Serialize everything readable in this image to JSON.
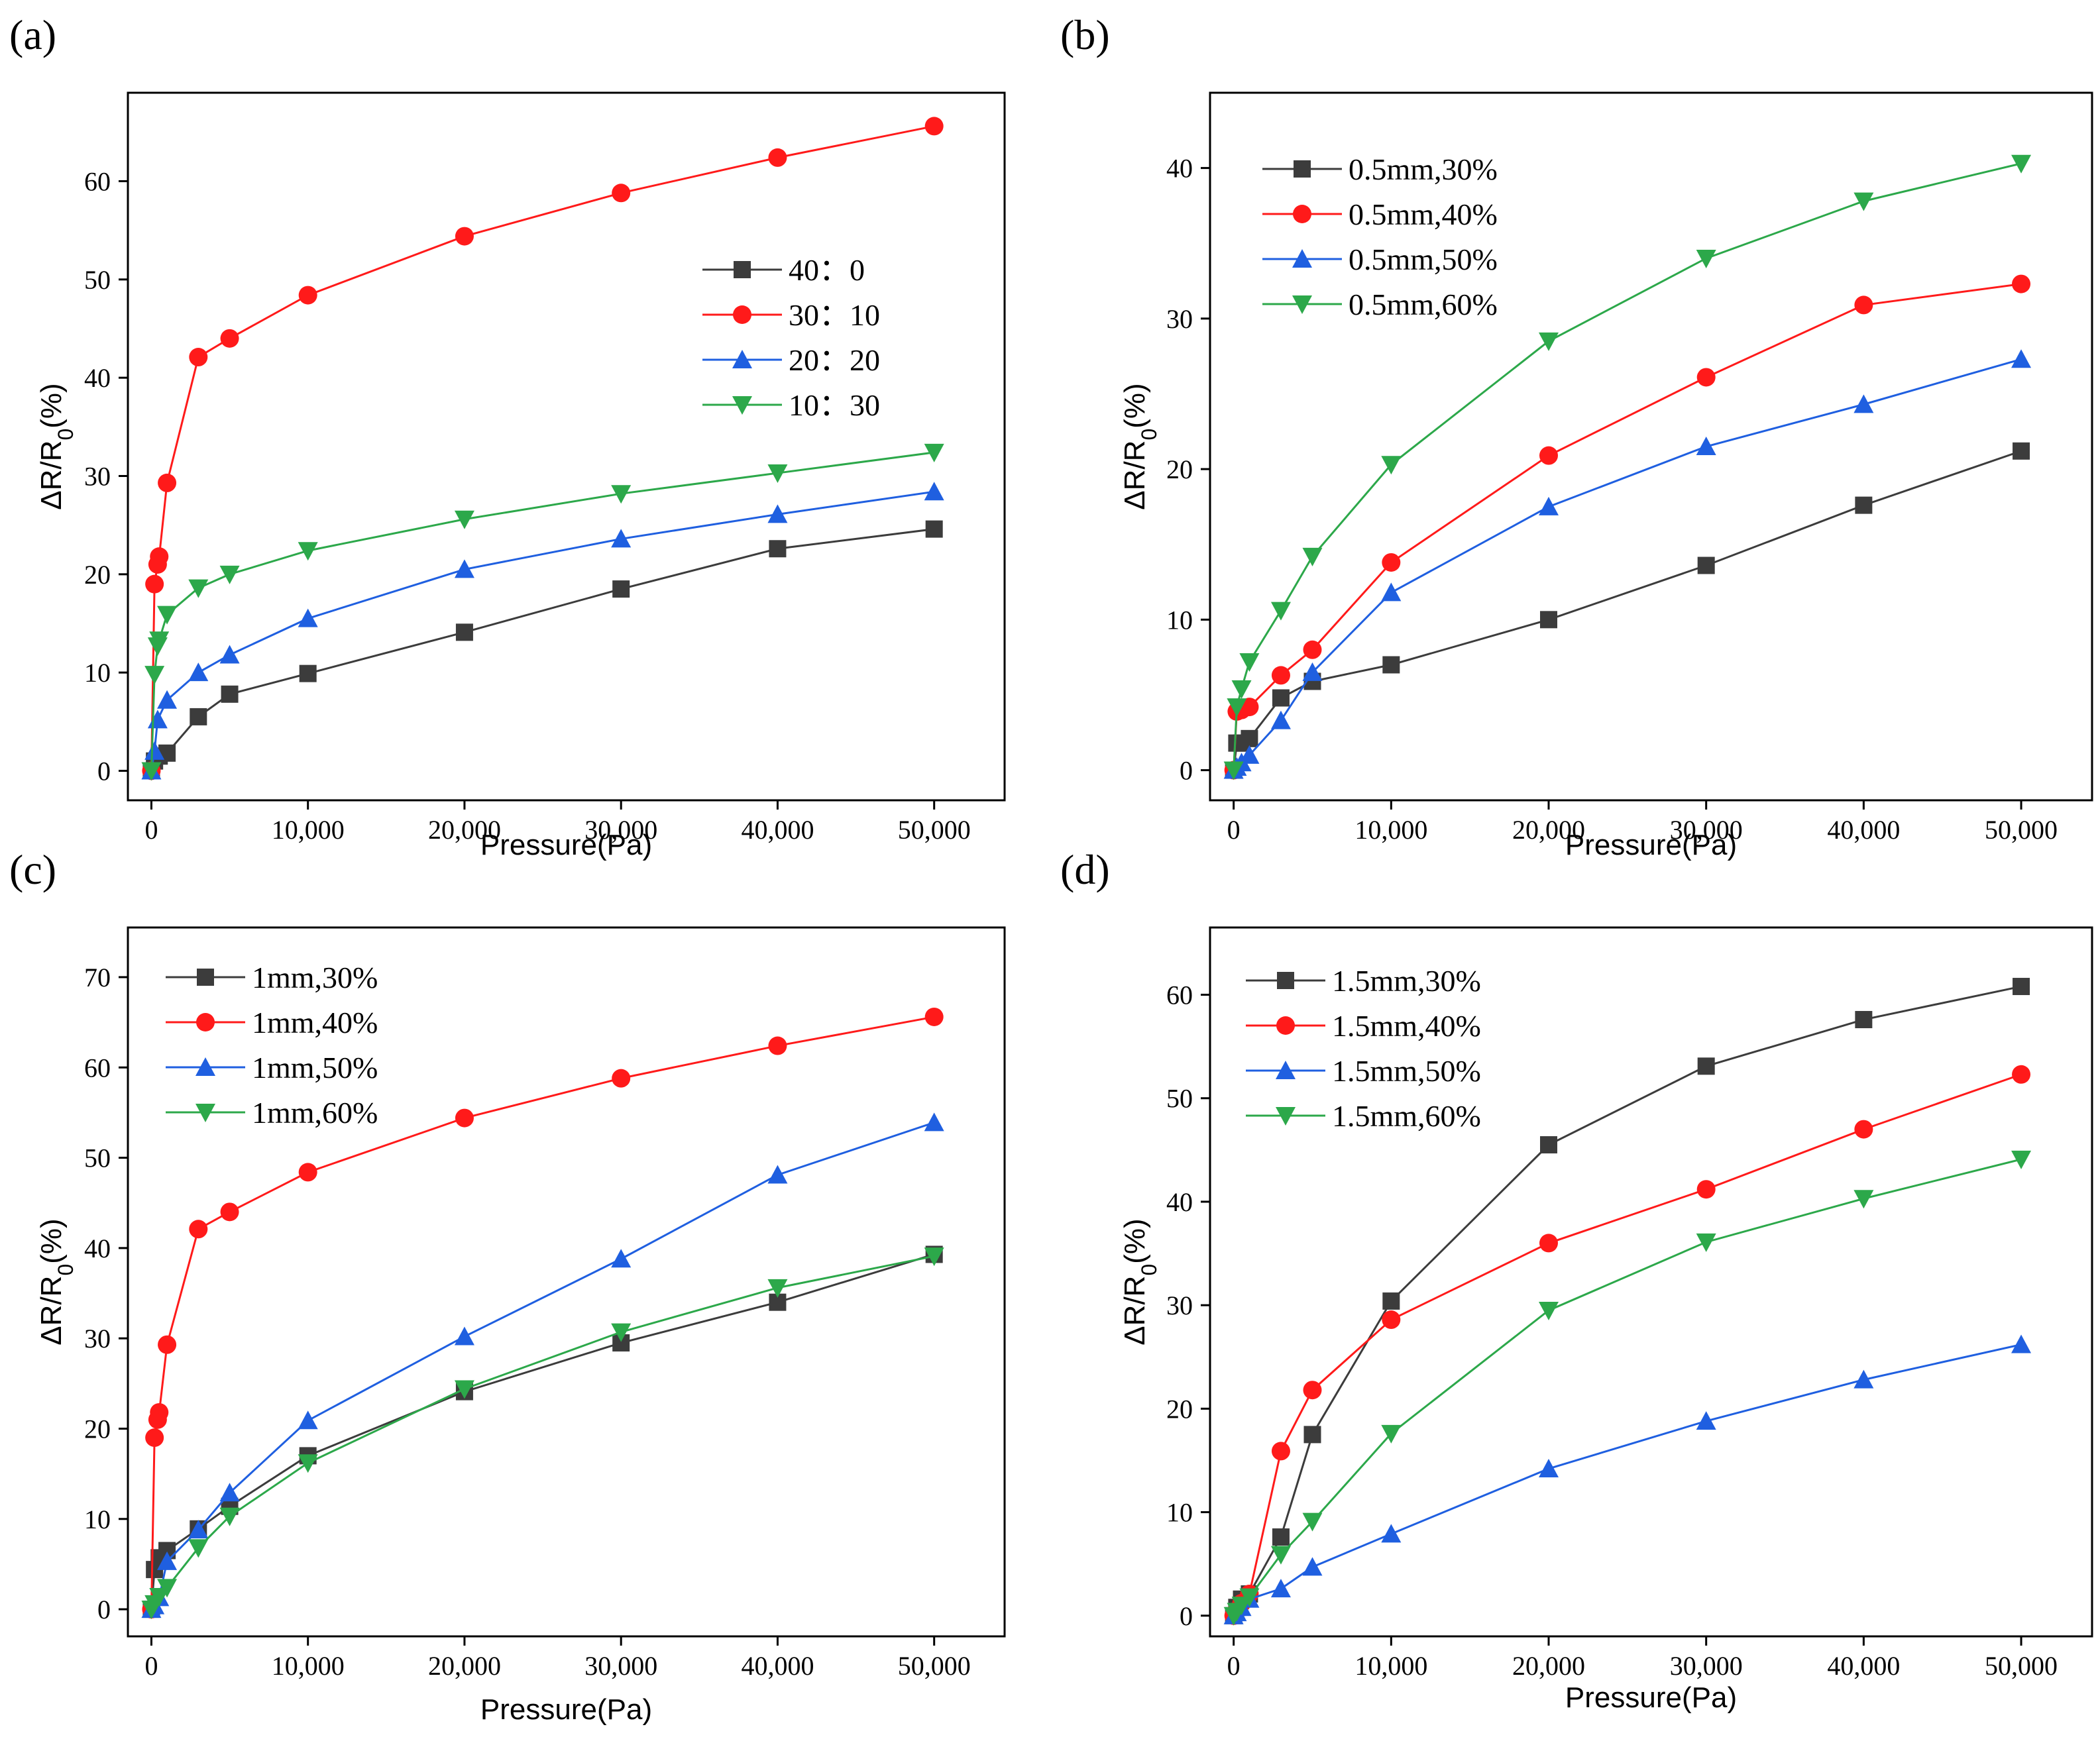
{
  "chart_data": [
    {
      "panel": "(a)",
      "type": "line",
      "xlabel": "Pressure(Pa)",
      "ylabel": "ΔR/R0(%)",
      "xlim": [
        -1500,
        54500
      ],
      "ylim": [
        -3,
        69
      ],
      "xticks": [
        0,
        10000,
        20000,
        30000,
        40000,
        50000
      ],
      "xtick_labels": [
        "0",
        "10,000",
        "20,000",
        "30,000",
        "40,000",
        "50,000"
      ],
      "yticks": [
        0,
        10,
        20,
        30,
        40,
        50,
        60
      ],
      "ytick_labels": [
        "0",
        "10",
        "20",
        "30",
        "40",
        "50",
        "60"
      ],
      "legend_position": "center-right",
      "series": [
        {
          "name": "40：0",
          "color": "#3c3c3c",
          "marker": "square",
          "x": [
            0,
            200,
            500,
            1000,
            3000,
            5000,
            10000,
            20000,
            30000,
            40000,
            50000
          ],
          "y": [
            0,
            1.0,
            1.5,
            1.8,
            5.5,
            7.8,
            9.9,
            14.1,
            18.5,
            22.6,
            24.6
          ]
        },
        {
          "name": "30：10",
          "color": "#ff1a1a",
          "marker": "circle",
          "x": [
            0,
            200,
            400,
            500,
            1000,
            3000,
            5000,
            10000,
            20000,
            30000,
            40000,
            50000
          ],
          "y": [
            0,
            19.0,
            21.0,
            21.8,
            29.3,
            42.1,
            44.0,
            48.4,
            54.4,
            58.8,
            62.4,
            65.6
          ]
        },
        {
          "name": "20：20",
          "color": "#1f5fe0",
          "marker": "triangle-up",
          "x": [
            0,
            200,
            400,
            1000,
            3000,
            5000,
            10000,
            20000,
            30000,
            40000,
            50000
          ],
          "y": [
            0,
            2.0,
            5.2,
            7.2,
            10.0,
            11.8,
            15.5,
            20.5,
            23.6,
            26.1,
            28.4
          ]
        },
        {
          "name": "10：30",
          "color": "#2ca84a",
          "marker": "triangle-down",
          "x": [
            0,
            200,
            400,
            500,
            1000,
            3000,
            5000,
            10000,
            20000,
            30000,
            40000,
            50000
          ],
          "y": [
            0,
            9.8,
            12.7,
            13.3,
            15.9,
            18.6,
            20.0,
            22.4,
            25.6,
            28.2,
            30.3,
            32.4
          ]
        }
      ]
    },
    {
      "panel": "(b)",
      "type": "line",
      "xlabel": "Pressure(Pa)",
      "ylabel": "ΔR/R0(%)",
      "xlim": [
        -1500,
        54500
      ],
      "ylim": [
        -2,
        45
      ],
      "xticks": [
        0,
        10000,
        20000,
        30000,
        40000,
        50000
      ],
      "xtick_labels": [
        "0",
        "10,000",
        "20,000",
        "30,000",
        "40,000",
        "50,000"
      ],
      "yticks": [
        0,
        10,
        20,
        30,
        40
      ],
      "ytick_labels": [
        "0",
        "10",
        "20",
        "30",
        "40"
      ],
      "legend_position": "top-left",
      "series": [
        {
          "name": "0.5mm,30%",
          "color": "#3c3c3c",
          "marker": "square",
          "x": [
            0,
            200,
            500,
            1000,
            3000,
            5000,
            10000,
            20000,
            30000,
            40000,
            50000
          ],
          "y": [
            0,
            1.8,
            1.8,
            2.1,
            4.8,
            5.9,
            7.0,
            10.0,
            13.6,
            17.6,
            21.2
          ]
        },
        {
          "name": "0.5mm,40%",
          "color": "#ff1a1a",
          "marker": "circle",
          "x": [
            0,
            200,
            500,
            1000,
            3000,
            5000,
            10000,
            20000,
            30000,
            40000,
            50000
          ],
          "y": [
            0,
            3.9,
            4.0,
            4.2,
            6.3,
            8.0,
            13.8,
            20.9,
            26.1,
            30.9,
            32.3
          ]
        },
        {
          "name": "0.5mm,50%",
          "color": "#1f5fe0",
          "marker": "triangle-up",
          "x": [
            0,
            200,
            500,
            1000,
            3000,
            5000,
            10000,
            20000,
            30000,
            40000,
            50000
          ],
          "y": [
            0,
            0.2,
            0.5,
            1.0,
            3.3,
            6.5,
            11.8,
            17.5,
            21.5,
            24.3,
            27.3
          ]
        },
        {
          "name": "0.5mm,60%",
          "color": "#2ca84a",
          "marker": "triangle-down",
          "x": [
            0,
            200,
            500,
            1000,
            3000,
            5000,
            10000,
            20000,
            30000,
            40000,
            50000
          ],
          "y": [
            0,
            4.2,
            5.4,
            7.2,
            10.6,
            14.2,
            20.3,
            28.5,
            34.0,
            37.8,
            40.3
          ]
        }
      ]
    },
    {
      "panel": "(c)",
      "type": "line",
      "xlabel": "Pressure(Pa)",
      "ylabel": "ΔR/R0(%)",
      "xlim": [
        -1500,
        54500
      ],
      "ylim": [
        -3,
        75.5
      ],
      "xticks": [
        0,
        10000,
        20000,
        30000,
        40000,
        50000
      ],
      "xtick_labels": [
        "0",
        "10,000",
        "20,000",
        "30,000",
        "40,000",
        "50,000"
      ],
      "yticks": [
        0,
        10,
        20,
        30,
        40,
        50,
        60,
        70
      ],
      "ytick_labels": [
        "0",
        "10",
        "20",
        "30",
        "40",
        "50",
        "60",
        "70"
      ],
      "legend_position": "top-left",
      "series": [
        {
          "name": "1mm,30%",
          "color": "#3c3c3c",
          "marker": "square",
          "x": [
            0,
            200,
            500,
            1000,
            3000,
            5000,
            10000,
            20000,
            30000,
            40000,
            50000
          ],
          "y": [
            0,
            4.4,
            5.7,
            6.5,
            8.9,
            11.4,
            17.0,
            24.1,
            29.5,
            34.0,
            39.3
          ]
        },
        {
          "name": "1mm,40%",
          "color": "#ff1a1a",
          "marker": "circle",
          "x": [
            0,
            200,
            400,
            500,
            1000,
            3000,
            5000,
            10000,
            20000,
            30000,
            40000,
            50000
          ],
          "y": [
            0,
            19.0,
            21.0,
            21.8,
            29.3,
            42.1,
            44.0,
            48.4,
            54.4,
            58.8,
            62.4,
            65.6
          ]
        },
        {
          "name": "1mm,50%",
          "color": "#1f5fe0",
          "marker": "triangle-up",
          "x": [
            0,
            200,
            500,
            1000,
            3000,
            5000,
            10000,
            20000,
            30000,
            40000,
            50000
          ],
          "y": [
            0,
            0.4,
            1.3,
            5.3,
            8.8,
            12.9,
            20.9,
            30.2,
            38.8,
            48.1,
            53.9
          ]
        },
        {
          "name": "1mm,60%",
          "color": "#2ca84a",
          "marker": "triangle-down",
          "x": [
            0,
            200,
            500,
            1000,
            3000,
            5000,
            10000,
            20000,
            30000,
            40000,
            50000
          ],
          "y": [
            0,
            0.6,
            1.4,
            2.4,
            6.8,
            10.3,
            16.2,
            24.4,
            30.7,
            35.6,
            39.1
          ]
        }
      ]
    },
    {
      "panel": "(d)",
      "type": "line",
      "xlabel": "Pressure(Pa)",
      "ylabel": "ΔR/R0(%)",
      "xlim": [
        -1500,
        54500
      ],
      "ylim": [
        -2,
        66.5
      ],
      "xticks": [
        0,
        10000,
        20000,
        30000,
        40000,
        50000
      ],
      "xtick_labels": [
        "0",
        "10,000",
        "20,000",
        "30,000",
        "40,000",
        "50,000"
      ],
      "yticks": [
        0,
        10,
        20,
        30,
        40,
        50,
        60
      ],
      "ytick_labels": [
        "0",
        "10",
        "20",
        "30",
        "40",
        "50",
        "60"
      ],
      "legend_position": "top-left",
      "series": [
        {
          "name": "1.5mm,30%",
          "color": "#3c3c3c",
          "marker": "square",
          "x": [
            0,
            200,
            500,
            1000,
            3000,
            5000,
            10000,
            20000,
            30000,
            40000,
            50000
          ],
          "y": [
            0,
            0.8,
            1.6,
            2.1,
            7.6,
            17.5,
            30.4,
            45.5,
            53.1,
            57.6,
            60.8
          ]
        },
        {
          "name": "1.5mm,40%",
          "color": "#ff1a1a",
          "marker": "circle",
          "x": [
            0,
            200,
            500,
            1000,
            3000,
            5000,
            10000,
            20000,
            30000,
            40000,
            50000
          ],
          "y": [
            0,
            0.5,
            1.2,
            2.1,
            15.9,
            21.8,
            28.6,
            36.0,
            41.2,
            47.0,
            52.3
          ]
        },
        {
          "name": "1.5mm,50%",
          "color": "#1f5fe0",
          "marker": "triangle-up",
          "x": [
            0,
            200,
            500,
            1000,
            3000,
            5000,
            10000,
            20000,
            30000,
            40000,
            50000
          ],
          "y": [
            0,
            0.3,
            0.8,
            1.6,
            2.6,
            4.7,
            7.9,
            14.2,
            18.8,
            22.8,
            26.2
          ]
        },
        {
          "name": "1.5mm,60%",
          "color": "#2ca84a",
          "marker": "triangle-down",
          "x": [
            0,
            200,
            500,
            1000,
            3000,
            5000,
            10000,
            20000,
            30000,
            40000,
            50000
          ],
          "y": [
            0,
            0.4,
            1.0,
            1.8,
            5.9,
            9.1,
            17.6,
            29.5,
            36.1,
            40.3,
            44.1
          ]
        }
      ]
    }
  ]
}
